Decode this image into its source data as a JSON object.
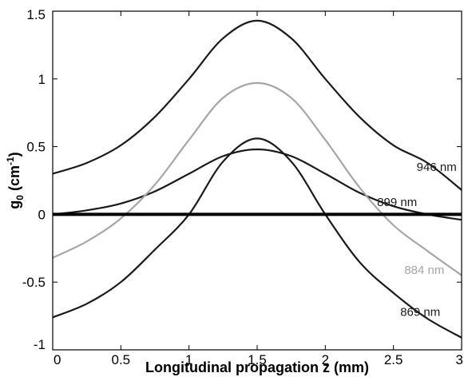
{
  "chart_data": {
    "type": "line",
    "xlabel": "Longitudinal propagation z (mm)",
    "ylabel": {
      "main": "g",
      "sub": "0",
      "pre": " (cm",
      "sup": "-1",
      "post": ")"
    },
    "xlim": [
      0,
      3
    ],
    "ylim": [
      -1,
      1.5
    ],
    "xticks": [
      0,
      0.5,
      1,
      1.5,
      2,
      2.5,
      3
    ],
    "xtick_labels": [
      "0",
      "0.5",
      "1",
      "1.5",
      "2",
      "2.5",
      "3"
    ],
    "yticks": [
      -1,
      -0.5,
      0,
      0.5,
      1,
      1.5
    ],
    "ytick_labels": [
      "-1",
      "-0.5",
      "0",
      "0.5",
      "1",
      "1.5"
    ],
    "grid": false,
    "zero_line": 0,
    "series": [
      {
        "name": "946 nm",
        "color": "#1a1a1a",
        "x": [
          0,
          0.25,
          0.5,
          0.75,
          1.0,
          1.25,
          1.5,
          1.75,
          2.0,
          2.25,
          2.5,
          2.75,
          3.0
        ],
        "y": [
          0.3,
          0.38,
          0.51,
          0.72,
          1.0,
          1.3,
          1.43,
          1.3,
          1.0,
          0.72,
          0.51,
          0.38,
          0.18
        ]
      },
      {
        "name": "899 nm",
        "color": "#1a1a1a",
        "x": [
          0,
          0.25,
          0.5,
          0.75,
          1.0,
          1.25,
          1.5,
          1.75,
          2.0,
          2.25,
          2.5,
          2.75,
          3.0
        ],
        "y": [
          0.0,
          0.03,
          0.08,
          0.17,
          0.3,
          0.43,
          0.48,
          0.43,
          0.3,
          0.16,
          0.06,
          0.0,
          -0.04
        ]
      },
      {
        "name": "884 nm",
        "color": "#a6a6a6",
        "x": [
          0,
          0.25,
          0.5,
          0.75,
          1.0,
          1.25,
          1.5,
          1.75,
          2.0,
          2.25,
          2.5,
          2.75,
          3.0
        ],
        "y": [
          -0.32,
          -0.2,
          -0.03,
          0.22,
          0.55,
          0.86,
          0.97,
          0.86,
          0.55,
          0.2,
          -0.08,
          -0.27,
          -0.45
        ]
      },
      {
        "name": "869 nm",
        "color": "#1a1a1a",
        "x": [
          0,
          0.25,
          0.5,
          0.75,
          1.0,
          1.25,
          1.5,
          1.75,
          2.0,
          2.25,
          2.5,
          2.75,
          3.0
        ],
        "y": [
          -0.76,
          -0.66,
          -0.5,
          -0.26,
          0.0,
          0.39,
          0.56,
          0.39,
          0.0,
          -0.35,
          -0.58,
          -0.77,
          -0.91
        ]
      }
    ],
    "annotations": [
      {
        "text": "946 nm",
        "x": 2.67,
        "y": 0.35,
        "color": "#1a1a1a"
      },
      {
        "text": "899 nm",
        "x": 2.38,
        "y": 0.09,
        "color": "#1a1a1a"
      },
      {
        "text": "884 nm",
        "x": 2.58,
        "y": -0.41,
        "color": "#a6a6a6"
      },
      {
        "text": "869 nm",
        "x": 2.55,
        "y": -0.72,
        "color": "#1a1a1a"
      }
    ]
  }
}
